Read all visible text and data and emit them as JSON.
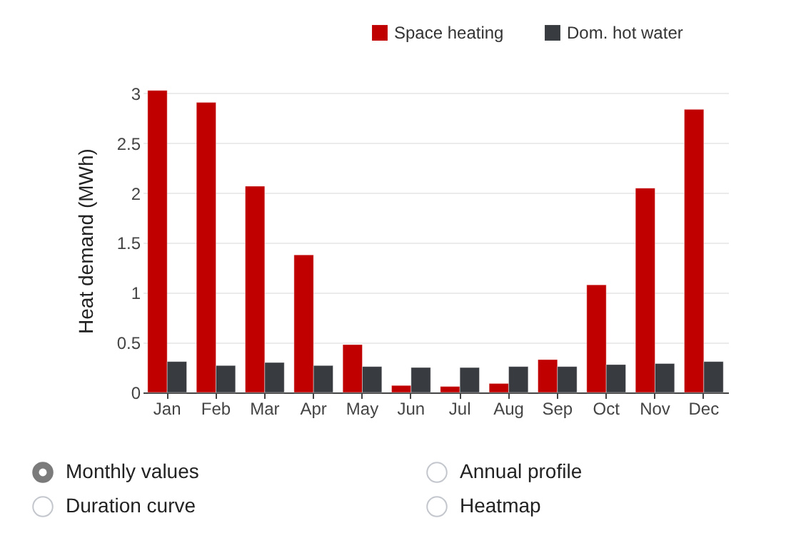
{
  "chart_data": {
    "type": "bar",
    "ylabel": "Heat demand (MWh)",
    "categories": [
      "Jan",
      "Feb",
      "Mar",
      "Apr",
      "May",
      "Jun",
      "Jul",
      "Aug",
      "Sep",
      "Oct",
      "Nov",
      "Dec"
    ],
    "series": [
      {
        "name": "Space heating",
        "color": "#c00000",
        "values": [
          3.03,
          2.91,
          2.07,
          1.38,
          0.48,
          0.07,
          0.06,
          0.09,
          0.33,
          1.08,
          2.05,
          2.84
        ]
      },
      {
        "name": "Dom. hot water",
        "color": "#383b40",
        "values": [
          0.31,
          0.27,
          0.3,
          0.27,
          0.26,
          0.25,
          0.25,
          0.26,
          0.26,
          0.28,
          0.29,
          0.31
        ]
      }
    ],
    "ylim": [
      0,
      3.05
    ],
    "yticks": [
      0,
      0.5,
      1,
      1.5,
      2,
      2.5,
      3
    ],
    "grid": "y",
    "legend": "top right",
    "annotations": [
      "Monthly values",
      "Annual profile",
      "Duration curve",
      "Heatmap"
    ]
  }
}
